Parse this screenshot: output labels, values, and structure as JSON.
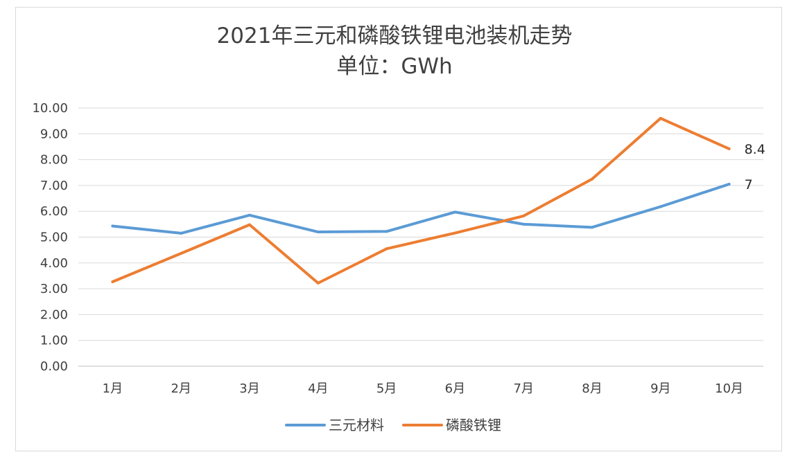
{
  "chart_data": {
    "type": "line",
    "title": "2021年三元和磷酸铁锂电池装机走势",
    "subtitle": "单位：GWh",
    "xlabel": "",
    "ylabel": "",
    "categories": [
      "1月",
      "2月",
      "3月",
      "4月",
      "5月",
      "6月",
      "7月",
      "8月",
      "9月",
      "10月"
    ],
    "ylim": [
      0,
      10
    ],
    "y_ticks": [
      "0.00",
      "1.00",
      "2.00",
      "3.00",
      "4.00",
      "5.00",
      "6.00",
      "7.00",
      "8.00",
      "9.00",
      "10.00"
    ],
    "grid": true,
    "legend": "bottom",
    "series": [
      {
        "name": "三元材料",
        "color": "#5B9BD5",
        "values": [
          5.43,
          5.15,
          5.85,
          5.2,
          5.22,
          5.97,
          5.5,
          5.38,
          6.18,
          7.05
        ],
        "end_label": "7"
      },
      {
        "name": "磷酸铁锂",
        "color": "#ED7D31",
        "values": [
          3.27,
          4.37,
          5.48,
          3.22,
          4.55,
          5.16,
          5.82,
          7.25,
          9.6,
          8.42
        ],
        "end_label": "8.4"
      }
    ]
  }
}
